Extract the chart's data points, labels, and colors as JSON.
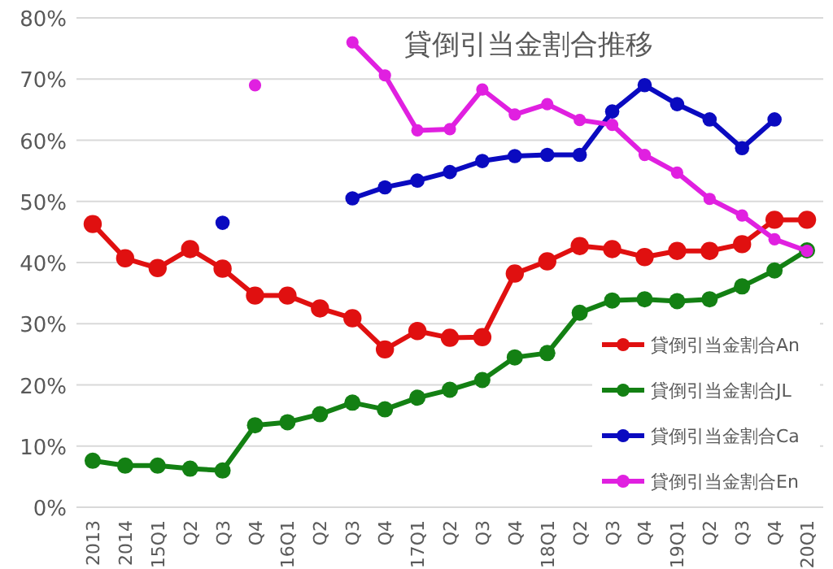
{
  "chart_data": {
    "type": "line",
    "title": "貸倒引当金割合推移",
    "categories": [
      "2013",
      "2014",
      "15Q1",
      "Q2",
      "Q3",
      "Q4",
      "16Q1",
      "Q2",
      "Q3",
      "Q4",
      "17Q1",
      "Q2",
      "Q3",
      "Q4",
      "18Q1",
      "Q2",
      "Q3",
      "Q4",
      "19Q1",
      "Q2",
      "Q3",
      "Q4",
      "20Q1"
    ],
    "series": [
      {
        "name": "貸倒引当金割合An",
        "color": "#e01010",
        "values": [
          46.3,
          40.7,
          39.1,
          42.2,
          39.0,
          34.6,
          34.6,
          32.5,
          30.9,
          25.8,
          28.8,
          27.7,
          27.8,
          38.2,
          40.2,
          42.7,
          42.2,
          40.9,
          41.9,
          41.9,
          43.0,
          47.0,
          47.0
        ]
      },
      {
        "name": "貸倒引当金割合JL",
        "color": "#138013",
        "values": [
          7.6,
          6.8,
          6.8,
          6.3,
          6.0,
          13.4,
          13.9,
          15.2,
          17.1,
          16.0,
          17.9,
          19.2,
          20.8,
          24.5,
          25.2,
          31.8,
          33.8,
          34.0,
          33.7,
          34.0,
          36.1,
          38.7,
          42.0
        ]
      },
      {
        "name": "貸倒引当金割合Ca",
        "color": "#0a0ac0",
        "values": [
          null,
          null,
          null,
          null,
          46.5,
          null,
          null,
          null,
          50.5,
          52.3,
          53.4,
          54.8,
          56.6,
          57.4,
          57.6,
          57.6,
          64.7,
          69.0,
          65.9,
          63.4,
          58.7,
          63.4,
          null
        ]
      },
      {
        "name": "貸倒引当金割合En",
        "color": "#e020e0",
        "values": [
          null,
          null,
          null,
          null,
          null,
          69.0,
          null,
          null,
          76.0,
          70.6,
          61.6,
          61.8,
          68.3,
          64.2,
          65.9,
          63.3,
          62.5,
          57.6,
          54.7,
          50.4,
          47.7,
          43.8,
          41.9
        ]
      }
    ],
    "ylim": [
      0,
      80
    ],
    "yticks": [
      {
        "value": 0,
        "label": "0%"
      },
      {
        "value": 10,
        "label": "10%"
      },
      {
        "value": 20,
        "label": "20%"
      },
      {
        "value": 30,
        "label": "30%"
      },
      {
        "value": 40,
        "label": "40%"
      },
      {
        "value": 50,
        "label": "50%"
      },
      {
        "value": 60,
        "label": "60%"
      },
      {
        "value": 70,
        "label": "70%"
      },
      {
        "value": 80,
        "label": "80%"
      }
    ],
    "grid": "y",
    "legend": "right",
    "marker": "circle",
    "line_style": "solid"
  }
}
